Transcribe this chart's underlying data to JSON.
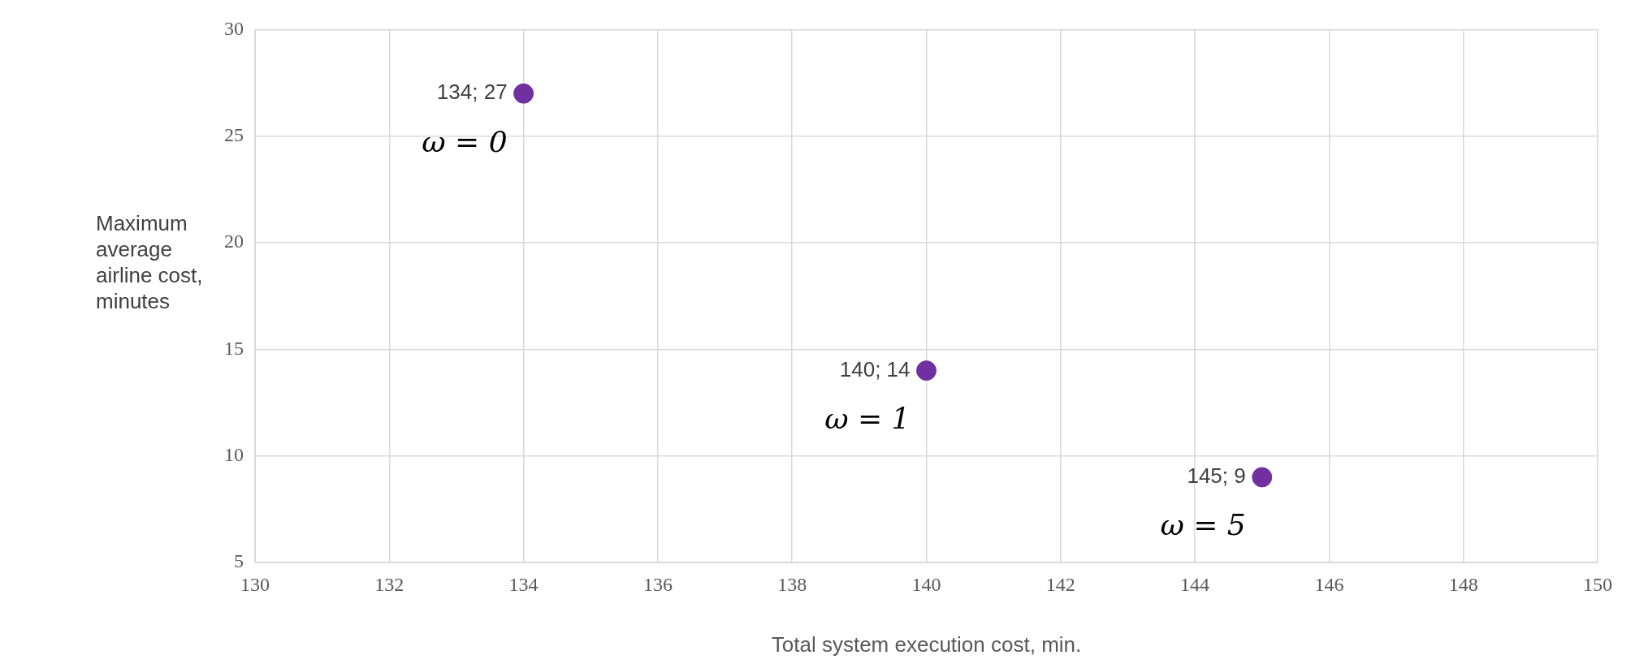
{
  "chart_data": {
    "type": "scatter",
    "xlabel": "Total system execution cost, min.",
    "ylabel": "Maximum average airline cost, minutes",
    "series": [
      {
        "color": "#7030a0",
        "x": [
          134,
          140,
          145
        ],
        "values": [
          27,
          14,
          9
        ],
        "value_labels": [
          "134; 27",
          "140; 14",
          "145; 9"
        ]
      }
    ],
    "annotations": [
      {
        "text": "ω = 0",
        "x": 134,
        "y": 27
      },
      {
        "text": "ω = 1",
        "x": 140,
        "y": 14
      },
      {
        "text": "ω = 5",
        "x": 145,
        "y": 9
      }
    ],
    "xlim": [
      130,
      150
    ],
    "xticks": [
      130,
      132,
      134,
      136,
      138,
      140,
      142,
      144,
      146,
      148,
      150
    ],
    "ylim": [
      5,
      30
    ],
    "yticks": [
      5,
      10,
      15,
      20,
      25,
      30
    ],
    "grid": true,
    "legend": false,
    "marker": "circle"
  }
}
